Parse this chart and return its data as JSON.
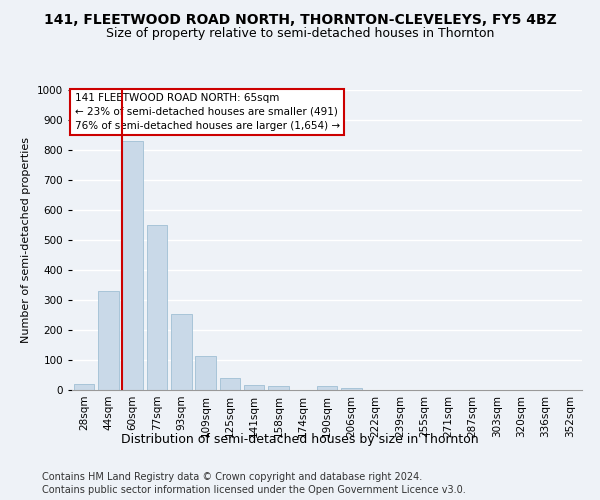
{
  "title1": "141, FLEETWOOD ROAD NORTH, THORNTON-CLEVELEYS, FY5 4BZ",
  "title2": "Size of property relative to semi-detached houses in Thornton",
  "xlabel": "Distribution of semi-detached houses by size in Thornton",
  "ylabel": "Number of semi-detached properties",
  "categories": [
    "28sqm",
    "44sqm",
    "60sqm",
    "77sqm",
    "93sqm",
    "109sqm",
    "125sqm",
    "141sqm",
    "158sqm",
    "174sqm",
    "190sqm",
    "206sqm",
    "222sqm",
    "239sqm",
    "255sqm",
    "271sqm",
    "287sqm",
    "303sqm",
    "320sqm",
    "336sqm",
    "352sqm"
  ],
  "values": [
    20,
    330,
    830,
    550,
    255,
    115,
    40,
    18,
    12,
    0,
    12,
    8,
    0,
    0,
    0,
    0,
    0,
    0,
    0,
    0,
    0
  ],
  "bar_color": "#c9d9e8",
  "bar_edge_color": "#a8c4d8",
  "red_line_color": "#cc0000",
  "annotation_text": "141 FLEETWOOD ROAD NORTH: 65sqm\n← 23% of semi-detached houses are smaller (491)\n76% of semi-detached houses are larger (1,654) →",
  "annotation_box_color": "white",
  "annotation_box_edge": "#cc0000",
  "footnote1": "Contains HM Land Registry data © Crown copyright and database right 2024.",
  "footnote2": "Contains public sector information licensed under the Open Government Licence v3.0.",
  "ylim": [
    0,
    1000
  ],
  "yticks": [
    0,
    100,
    200,
    300,
    400,
    500,
    600,
    700,
    800,
    900,
    1000
  ],
  "background_color": "#eef2f7",
  "grid_color": "#ffffff",
  "title1_fontsize": 10,
  "title2_fontsize": 9,
  "ylabel_fontsize": 8,
  "xlabel_fontsize": 9,
  "tick_fontsize": 7.5,
  "annotation_fontsize": 7.5,
  "footnote_fontsize": 7
}
